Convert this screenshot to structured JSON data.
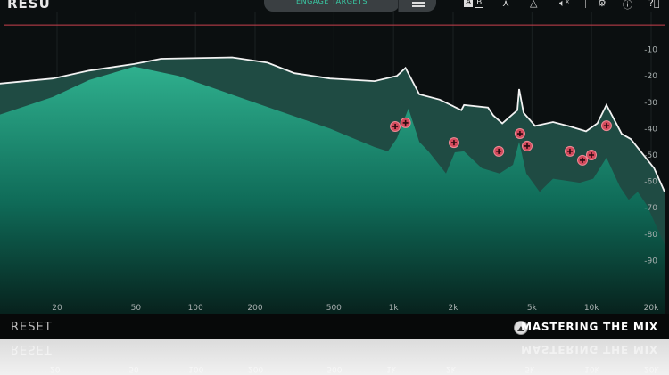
{
  "header": {
    "title": "RESU",
    "engage_button": "ENGAGE TARGETS",
    "menu_icon": "hamburger-icon",
    "icons": [
      "ab-compare-icon",
      "curve-icon",
      "triangle-icon",
      "mute-icon",
      "gear-icon",
      "info-icon",
      "help-icon"
    ],
    "ab_a": "A",
    "ab_b": "B"
  },
  "footer": {
    "reset": "RESET",
    "brand": "MASTERING THE MIX"
  },
  "colors": {
    "accent": "#39c9a4",
    "target_line": "#c9404e",
    "marker": "#d24a5c",
    "spectrum_top": "#2fb08e",
    "target_area": "#1f4b43"
  },
  "chart_data": {
    "type": "area",
    "x_scale": "log",
    "xlim": [
      10,
      23400
    ],
    "ylim": [
      -100,
      0
    ],
    "x_ticks": [
      {
        "v": 20,
        "label": "20"
      },
      {
        "v": 50,
        "label": "50"
      },
      {
        "v": 100,
        "label": "100"
      },
      {
        "v": 200,
        "label": "200"
      },
      {
        "v": 500,
        "label": "500"
      },
      {
        "v": 1000,
        "label": "1k"
      },
      {
        "v": 2000,
        "label": "2k"
      },
      {
        "v": 5000,
        "label": "5k"
      },
      {
        "v": 10000,
        "label": "10k"
      },
      {
        "v": 20000,
        "label": "20k"
      }
    ],
    "y_ticks": [
      {
        "v": -10,
        "label": "-10"
      },
      {
        "v": -20,
        "label": "-20"
      },
      {
        "v": -30,
        "label": "-30"
      },
      {
        "v": -40,
        "label": "-40"
      },
      {
        "v": -50,
        "label": "-50"
      },
      {
        "v": -60,
        "label": "-60"
      },
      {
        "v": -70,
        "label": "-70"
      },
      {
        "v": -80,
        "label": "-80"
      },
      {
        "v": -90,
        "label": "-90"
      }
    ],
    "target_level_db": -0.7,
    "target_curve": [
      [
        10,
        -23
      ],
      [
        19,
        -21
      ],
      [
        29,
        -18
      ],
      [
        49,
        -15.5
      ],
      [
        67,
        -13.5
      ],
      [
        153,
        -13
      ],
      [
        231,
        -15
      ],
      [
        316,
        -19
      ],
      [
        478,
        -21
      ],
      [
        803,
        -22
      ],
      [
        1040,
        -20
      ],
      [
        1150,
        -17
      ],
      [
        1350,
        -27
      ],
      [
        1710,
        -29
      ],
      [
        2200,
        -33
      ],
      [
        2270,
        -31
      ],
      [
        3000,
        -32
      ],
      [
        3190,
        -35
      ],
      [
        3540,
        -38
      ],
      [
        4220,
        -33
      ],
      [
        4310,
        -25
      ],
      [
        4540,
        -34
      ],
      [
        5190,
        -39
      ],
      [
        6390,
        -37.5
      ],
      [
        7620,
        -39
      ],
      [
        9380,
        -41
      ],
      [
        10700,
        -38
      ],
      [
        11900,
        -31
      ],
      [
        14200,
        -42
      ],
      [
        15800,
        -44
      ],
      [
        20700,
        -55
      ],
      [
        23400,
        -64
      ]
    ],
    "spectrum": [
      [
        10,
        -35
      ],
      [
        19,
        -28
      ],
      [
        29,
        -21.6
      ],
      [
        49,
        -16.5
      ],
      [
        82,
        -20
      ],
      [
        231,
        -31.8
      ],
      [
        478,
        -40
      ],
      [
        803,
        -47
      ],
      [
        937,
        -48.6
      ],
      [
        1040,
        -43.6
      ],
      [
        1190,
        -32.4
      ],
      [
        1350,
        -45
      ],
      [
        1500,
        -48.6
      ],
      [
        1840,
        -57
      ],
      [
        2040,
        -49
      ],
      [
        2270,
        -48.6
      ],
      [
        2790,
        -55
      ],
      [
        3430,
        -57
      ],
      [
        4010,
        -53.7
      ],
      [
        4310,
        -45
      ],
      [
        4680,
        -57
      ],
      [
        5470,
        -64
      ],
      [
        6390,
        -59
      ],
      [
        8710,
        -60.5
      ],
      [
        10200,
        -59
      ],
      [
        11900,
        -51
      ],
      [
        13900,
        -62
      ],
      [
        15400,
        -67
      ],
      [
        17100,
        -64
      ],
      [
        19000,
        -69
      ],
      [
        23400,
        -84
      ]
    ],
    "resonance_markers": [
      [
        1020,
        -39.2
      ],
      [
        1150,
        -37.8
      ],
      [
        2020,
        -45.3
      ],
      [
        3400,
        -48.6
      ],
      [
        4350,
        -41.9
      ],
      [
        4730,
        -46.6
      ],
      [
        7780,
        -48.6
      ],
      [
        9000,
        -52
      ],
      [
        9980,
        -50
      ],
      [
        11900,
        -38.9
      ]
    ]
  }
}
